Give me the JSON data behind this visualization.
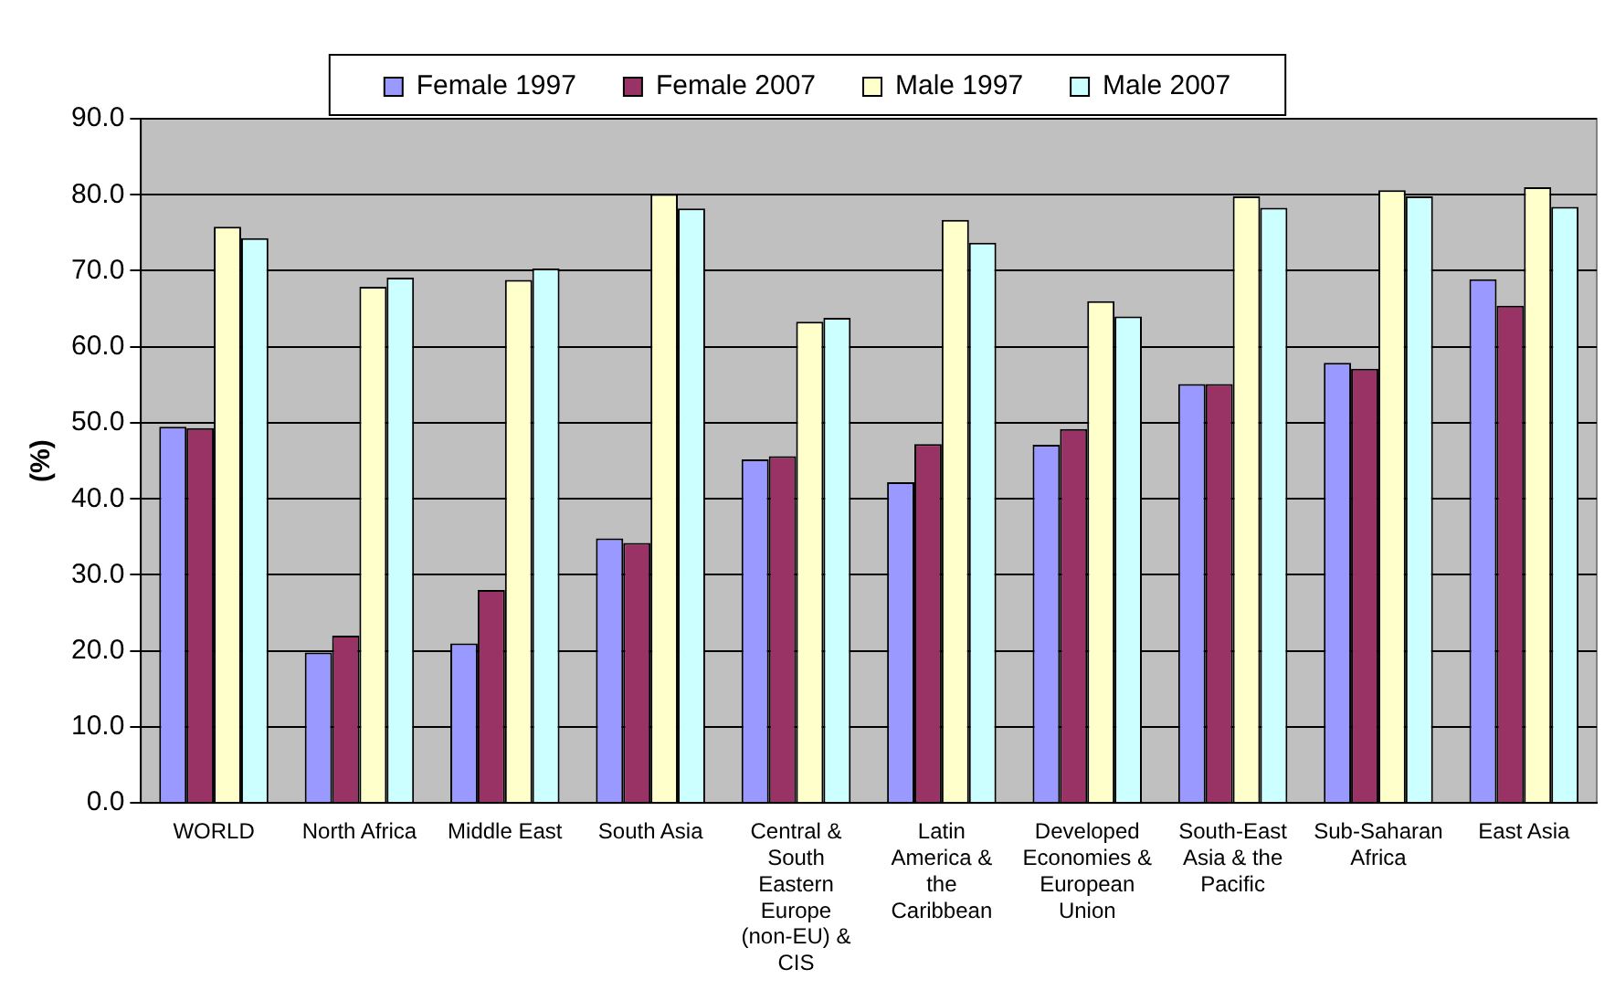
{
  "chart_data": {
    "type": "bar",
    "ylabel": "(%)",
    "categories": [
      "WORLD",
      "North Africa",
      "Middle East",
      "South Asia",
      "Central & South Eastern Europe (non-EU) & CIS",
      "Latin America & the Caribbean",
      "Developed Economies & European Union",
      "South-East Asia & the Pacific",
      "Sub-Saharan Africa",
      "East Asia"
    ],
    "series": [
      {
        "name": "Female 1997",
        "color": "#9999ff",
        "values": [
          49.5,
          19.8,
          21,
          34.8,
          45.2,
          42.2,
          47.1,
          55.1,
          57.9,
          68.9
        ]
      },
      {
        "name": "Female 2007",
        "color": "#993366",
        "values": [
          49.3,
          22,
          28,
          34.2,
          45.6,
          47.2,
          49.2,
          55.1,
          57.1,
          65.4
        ]
      },
      {
        "name": "Male 1997",
        "color": "#ffffcc",
        "values": [
          75.8,
          67.9,
          68.8,
          80.1,
          63.3,
          76.7,
          66,
          79.8,
          80.6,
          81
        ]
      },
      {
        "name": "Male 2007",
        "color": "#ccffff",
        "values": [
          74.3,
          69.1,
          70.3,
          78.2,
          63.8,
          73.7,
          64,
          78.3,
          79.8,
          78.4
        ]
      }
    ],
    "ylim": [
      0,
      90
    ],
    "yticks": [
      {
        "value": 0,
        "label": "0.0"
      },
      {
        "value": 10,
        "label": "10.0"
      },
      {
        "value": 20,
        "label": "20.0"
      },
      {
        "value": 30,
        "label": "30.0"
      },
      {
        "value": 40,
        "label": "40.0"
      },
      {
        "value": 50,
        "label": "50.0"
      },
      {
        "value": 60,
        "label": "60.0"
      },
      {
        "value": 70,
        "label": "70.0"
      },
      {
        "value": 80,
        "label": "80.0"
      },
      {
        "value": 90,
        "label": "90.0"
      }
    ],
    "grid": "y",
    "legend": "top"
  }
}
